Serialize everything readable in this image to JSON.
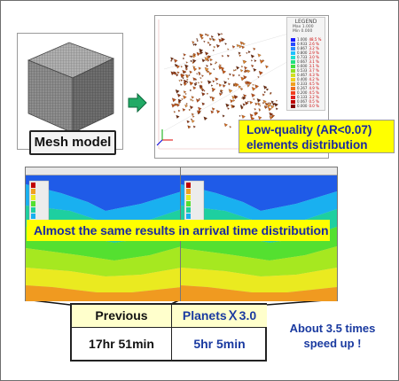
{
  "mesh": {
    "label": "Mesh model"
  },
  "legend": {
    "title": "LEGEND",
    "max_label": "Max",
    "min_label": "Min",
    "max_value": "1.000",
    "min_value": "0.000",
    "rows": [
      {
        "value": "1.000",
        "pct": "48.5 %",
        "color": "#1a1aff"
      },
      {
        "value": "0.933",
        "pct": "2.6 %",
        "color": "#2a4cff"
      },
      {
        "value": "0.867",
        "pct": "3.2 %",
        "color": "#2a8cff"
      },
      {
        "value": "0.800",
        "pct": "2.9 %",
        "color": "#20c0ff"
      },
      {
        "value": "0.733",
        "pct": "3.0 %",
        "color": "#20e0d0"
      },
      {
        "value": "0.667",
        "pct": "3.1 %",
        "color": "#20e080"
      },
      {
        "value": "0.600",
        "pct": "3.1 %",
        "color": "#40e040"
      },
      {
        "value": "0.533",
        "pct": "3.7 %",
        "color": "#90e020"
      },
      {
        "value": "0.467",
        "pct": "4.3 %",
        "color": "#d0e020"
      },
      {
        "value": "0.400",
        "pct": "4.2 %",
        "color": "#f0d020"
      },
      {
        "value": "0.333",
        "pct": "4.5 %",
        "color": "#f0a020"
      },
      {
        "value": "0.267",
        "pct": "4.9 %",
        "color": "#f07020"
      },
      {
        "value": "0.200",
        "pct": "4.5 %",
        "color": "#f04020"
      },
      {
        "value": "0.133",
        "pct": "3.2 %",
        "color": "#e02020"
      },
      {
        "value": "0.067",
        "pct": "0.5 %",
        "color": "#c00000"
      },
      {
        "value": "0.000",
        "pct": "0.0 %",
        "color": "#800000"
      }
    ]
  },
  "callouts": {
    "low_quality_line1": "Low-quality (AR<0.07)",
    "low_quality_line2": "elements distribution",
    "same_results": "Almost the same results in arrival time distribution"
  },
  "comparison": {
    "previous_header": "Previous",
    "planets_header": "PlanetsＸ3.0",
    "previous_time": "17hr 51min",
    "planets_time": "5hr 5min"
  },
  "speedup": {
    "line1": "About 3.5 times",
    "line2": "speed up !"
  },
  "colors": {
    "callout_bg": "#ffff00",
    "callout_text": "#1a2aa0",
    "header_bg": "#ffffcc",
    "arrow": "#22aa66"
  }
}
